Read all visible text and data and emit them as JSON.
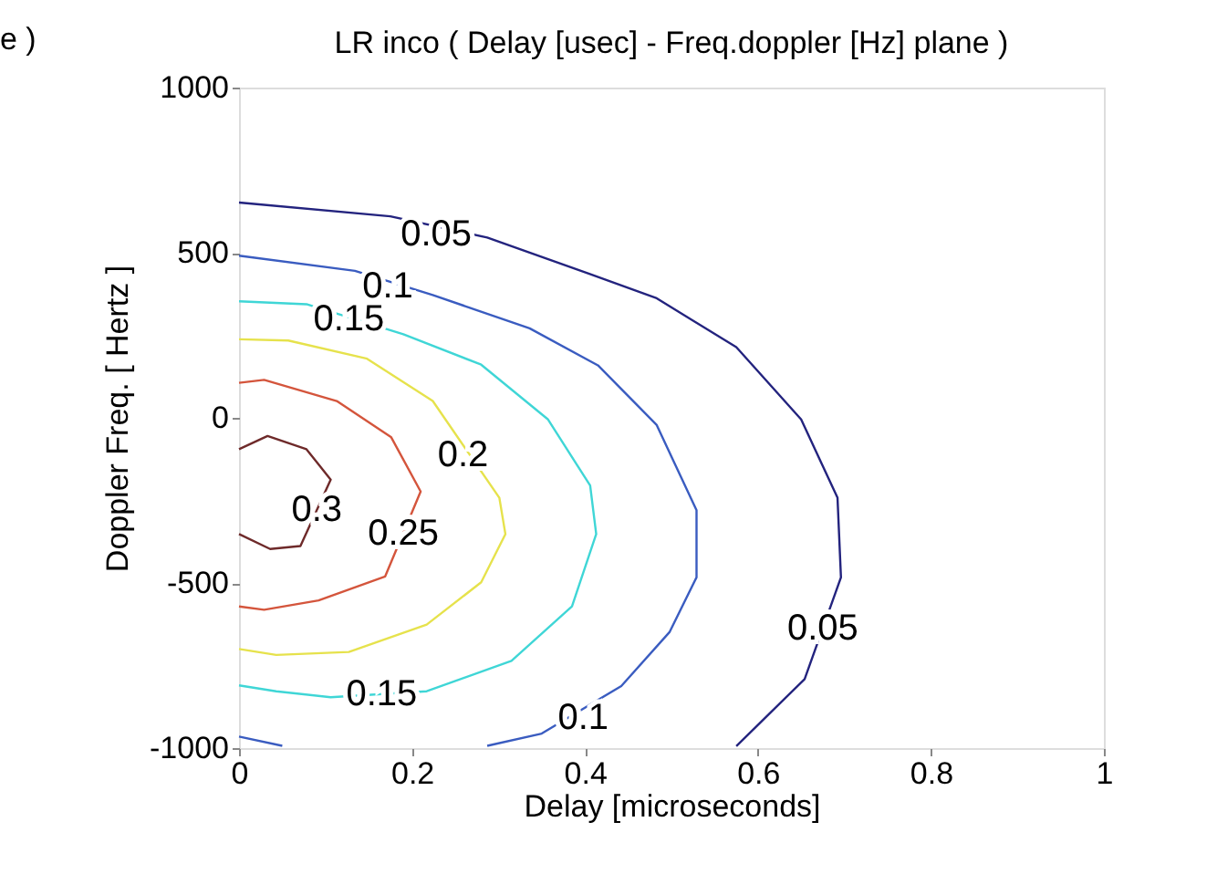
{
  "chart_data": {
    "type": "line",
    "title": "LR inco ( Delay [usec] - Freq.doppler [Hz] plane )",
    "xlabel": "Delay [microseconds]",
    "ylabel": "Doppler Freq. [ Hertz ]",
    "xlim": [
      0,
      1
    ],
    "xticks": [
      0,
      0.2,
      0.4,
      0.6,
      0.8,
      1
    ],
    "ylim": [
      -1000,
      1000
    ],
    "yticks": [
      -1000,
      -500,
      0,
      500,
      1000
    ],
    "grid": false,
    "legend": false,
    "marker": "none",
    "line_style": "solid",
    "series": [
      {
        "color": "#23237e",
        "x": [
          0,
          0.175,
          0.287,
          0.405,
          0.483,
          0.575,
          0.65,
          0.692,
          0.696,
          0.654,
          0.575
        ],
        "values": [
          652,
          610,
          546,
          436,
          362,
          214,
          -5,
          -242,
          -483,
          -791,
          -994
        ]
      },
      {
        "color": "#3a5cc0",
        "x": [
          0,
          0.134,
          0.224,
          0.336,
          0.415,
          0.483,
          0.529,
          0.529,
          0.498,
          0.442,
          0.35,
          0.287
        ],
        "values": [
          491,
          445,
          372,
          271,
          159,
          -22,
          -280,
          -483,
          -648,
          -812,
          -956,
          -993
        ]
      },
      {
        "color": "#3a5cc0",
        "x": [
          0,
          0.05
        ],
        "values": [
          -965,
          -993
        ]
      },
      {
        "color": "#3fd6d6",
        "x": [
          0,
          0.078,
          0.19,
          0.28,
          0.357,
          0.406,
          0.413,
          0.385,
          0.315,
          0.217,
          0.106,
          0.043,
          0
        ],
        "values": [
          353,
          344,
          253,
          161,
          -4,
          -205,
          -352,
          -571,
          -736,
          -828,
          -846,
          -828,
          -810
        ]
      },
      {
        "color": "#e6e24c",
        "x": [
          0,
          0.057,
          0.148,
          0.224,
          0.301,
          0.308,
          0.28,
          0.217,
          0.127,
          0.043,
          0
        ],
        "values": [
          238,
          234,
          179,
          51,
          -242,
          -352,
          -498,
          -626,
          -709,
          -718,
          -700
        ]
      },
      {
        "color": "#d4553c",
        "x": [
          0,
          0.029,
          0.113,
          0.176,
          0.21,
          0.169,
          0.092,
          0.029,
          0
        ],
        "values": [
          106,
          115,
          51,
          -59,
          -223,
          -480,
          -553,
          -581,
          -571
        ]
      },
      {
        "color": "#6e2a2a",
        "x": [
          0,
          0.033,
          0.078,
          0.106,
          0.071,
          0.036,
          0
        ],
        "values": [
          -95,
          -55,
          -95,
          -187,
          -388,
          -397,
          -352
        ]
      }
    ],
    "annotations": [
      "e )",
      {
        "text": "0.05",
        "x": 0.228,
        "y": 554
      },
      {
        "text": "0.1",
        "x": 0.172,
        "y": 399
      },
      {
        "text": "0.15",
        "x": 0.127,
        "y": 298
      },
      {
        "text": "0.2",
        "x": 0.259,
        "y": -114
      },
      {
        "text": "0.25",
        "x": 0.19,
        "y": -350
      },
      {
        "text": "0.3",
        "x": 0.09,
        "y": -280
      },
      {
        "text": "0.15",
        "x": 0.165,
        "y": -836
      },
      {
        "text": "0.1",
        "x": 0.398,
        "y": -910
      },
      {
        "text": "0.05",
        "x": 0.675,
        "y": -637
      }
    ]
  }
}
